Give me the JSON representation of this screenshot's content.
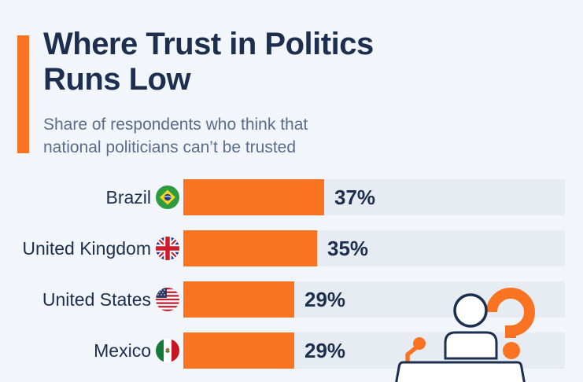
{
  "header": {
    "title_line1": "Where Trust in Politics",
    "title_line2": "Runs Low",
    "subtitle_line1": "Share of respondents who think that",
    "subtitle_line2": "national politicians can’t be trusted"
  },
  "chart_data": {
    "type": "bar",
    "orientation": "horizontal",
    "title": "Where Trust in Politics Runs Low",
    "subtitle": "Share of respondents who think that national politicians can’t be trusted",
    "categories": [
      "Brazil",
      "United Kingdom",
      "United States",
      "Mexico"
    ],
    "values": [
      37,
      35,
      29,
      29
    ],
    "unit": "%",
    "xlim": [
      0,
      100
    ],
    "grid": false,
    "legend": "none",
    "bar_color": "#f97322",
    "track_color": "#e7ecf3"
  },
  "rows": [
    {
      "label": "Brazil",
      "flag": "brazil-flag-icon",
      "value": 37,
      "value_label": "37%"
    },
    {
      "label": "United Kingdom",
      "flag": "uk-flag-icon",
      "value": 35,
      "value_label": "35%"
    },
    {
      "label": "United States",
      "flag": "us-flag-icon",
      "value": 29,
      "value_label": "29%"
    },
    {
      "label": "Mexico",
      "flag": "mexico-flag-icon",
      "value": 29,
      "value_label": "29%"
    }
  ],
  "decoration": {
    "icon": "speaker-at-podium-icon",
    "question_mark": "?"
  },
  "colors": {
    "accent_orange": "#f97322",
    "navy_text": "#1c2f4e",
    "subtitle_gray": "#5a6d8d",
    "background": "#f2f5f9",
    "bar_track": "#e7ecf3",
    "white": "#ffffff"
  }
}
